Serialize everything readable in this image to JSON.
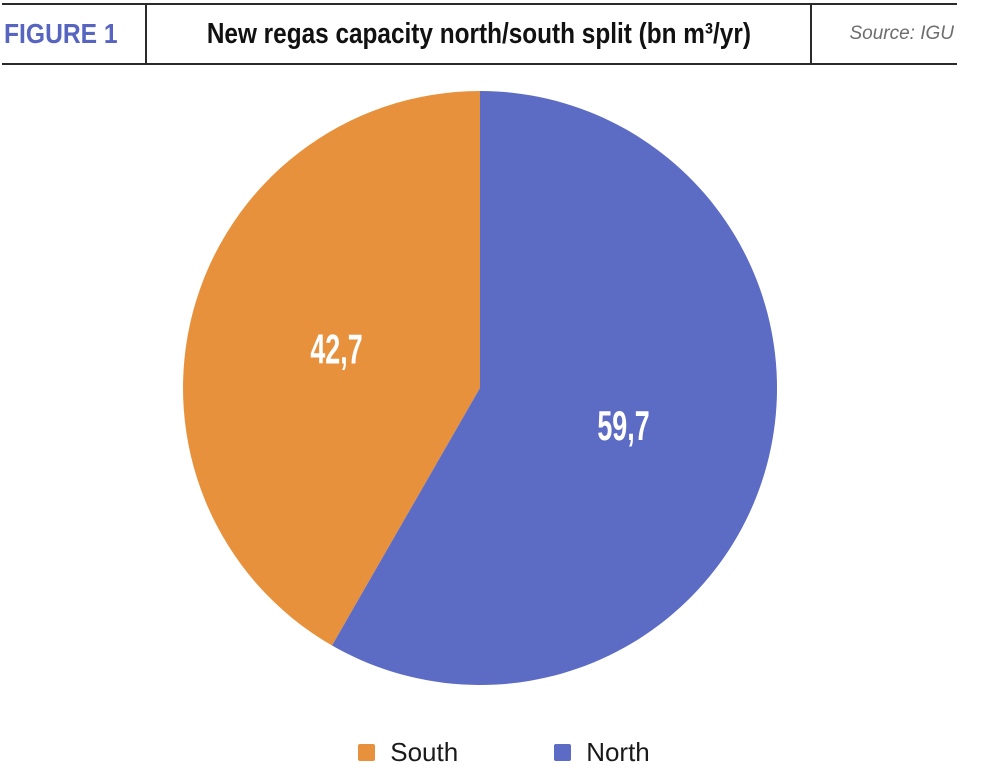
{
  "header": {
    "figure_label": "FIGURE 1",
    "title": "New regas capacity north/south split (bn m³/yr)",
    "source": "Source: IGU"
  },
  "chart_data": {
    "type": "pie",
    "title": "New regas capacity north/south split (bn m³/yr)",
    "unit": "bn m³/yr",
    "legend_position": "bottom",
    "decimal_separator": ",",
    "start_angle": "12 o'clock, South drawn counterclockwise (left), North clockwise (right)",
    "slices": [
      {
        "name": "South",
        "value": 42.7,
        "label": "42,7",
        "color": "#e8913c"
      },
      {
        "name": "North",
        "value": 59.7,
        "label": "59,7",
        "color": "#5c6bc4"
      }
    ]
  }
}
